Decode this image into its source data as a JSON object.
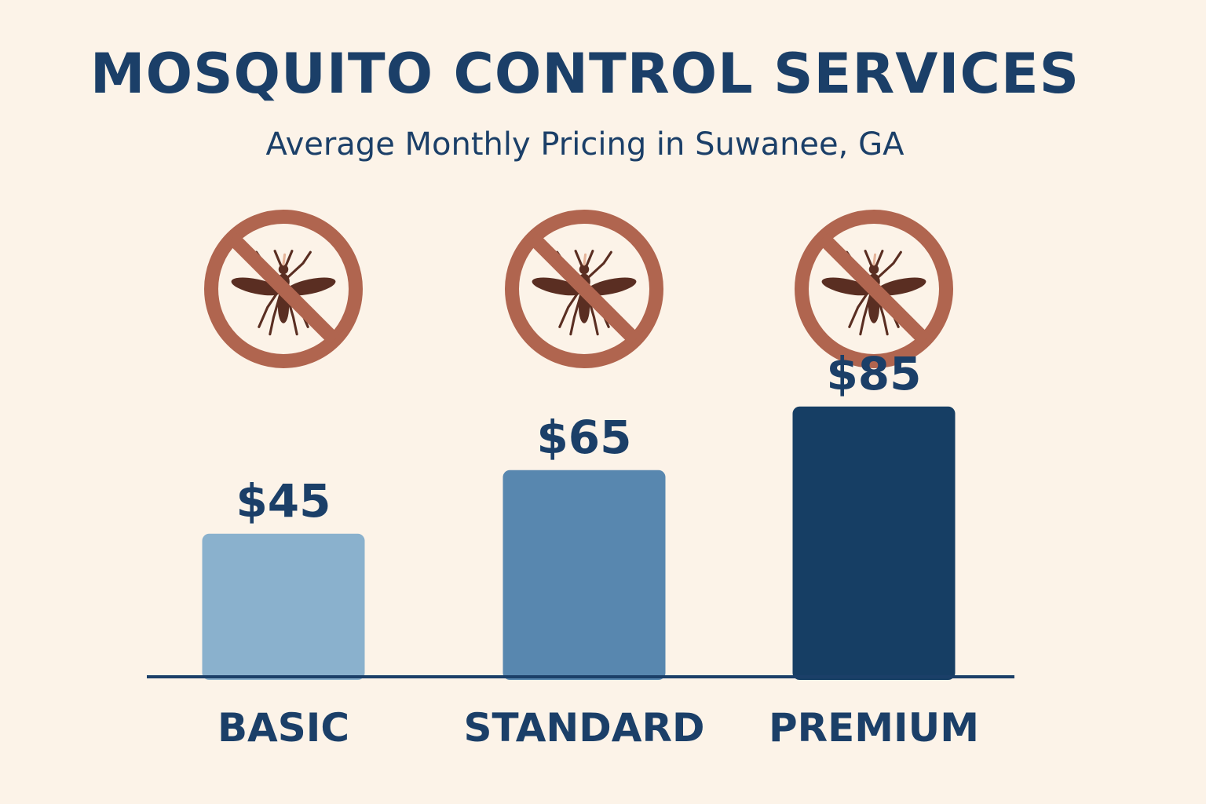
{
  "header": {
    "title": "MOSQUITO CONTROL SERVICES",
    "subtitle": "Average Monthly Pricing in Suwanee, GA"
  },
  "chart_data": {
    "type": "bar",
    "categories": [
      "BASIC",
      "STANDARD",
      "PREMIUM"
    ],
    "values": [
      45,
      65,
      85
    ],
    "value_labels": [
      "$45",
      "$65",
      "$85"
    ],
    "bar_colors": [
      "#8AB1CD",
      "#5887AF",
      "#163E64"
    ],
    "text_color": "#1B3F68",
    "baseline_color": "#1B3F68",
    "icon": "no-mosquito-icon",
    "icon_colors": {
      "ring": "#B0654F",
      "mosquito": "#5A2E22"
    },
    "grid": false,
    "legend": "none"
  }
}
